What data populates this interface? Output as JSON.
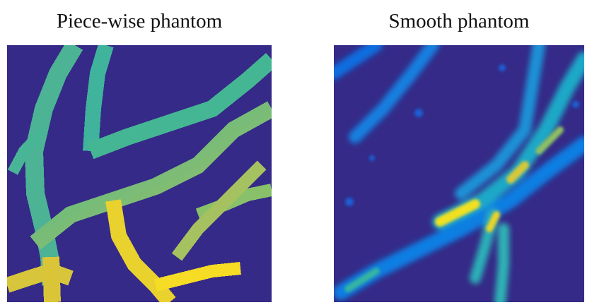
{
  "figure": {
    "panels": [
      {
        "title": "Piece-wise phantom"
      },
      {
        "title": "Smooth phantom"
      }
    ]
  },
  "colors": {
    "background": "#352a87",
    "parula_low": "#0f5cdd",
    "parula_mid": "#38b99e",
    "parula_mid_high": "#a5be6b",
    "parula_high": "#f9fb0e"
  }
}
